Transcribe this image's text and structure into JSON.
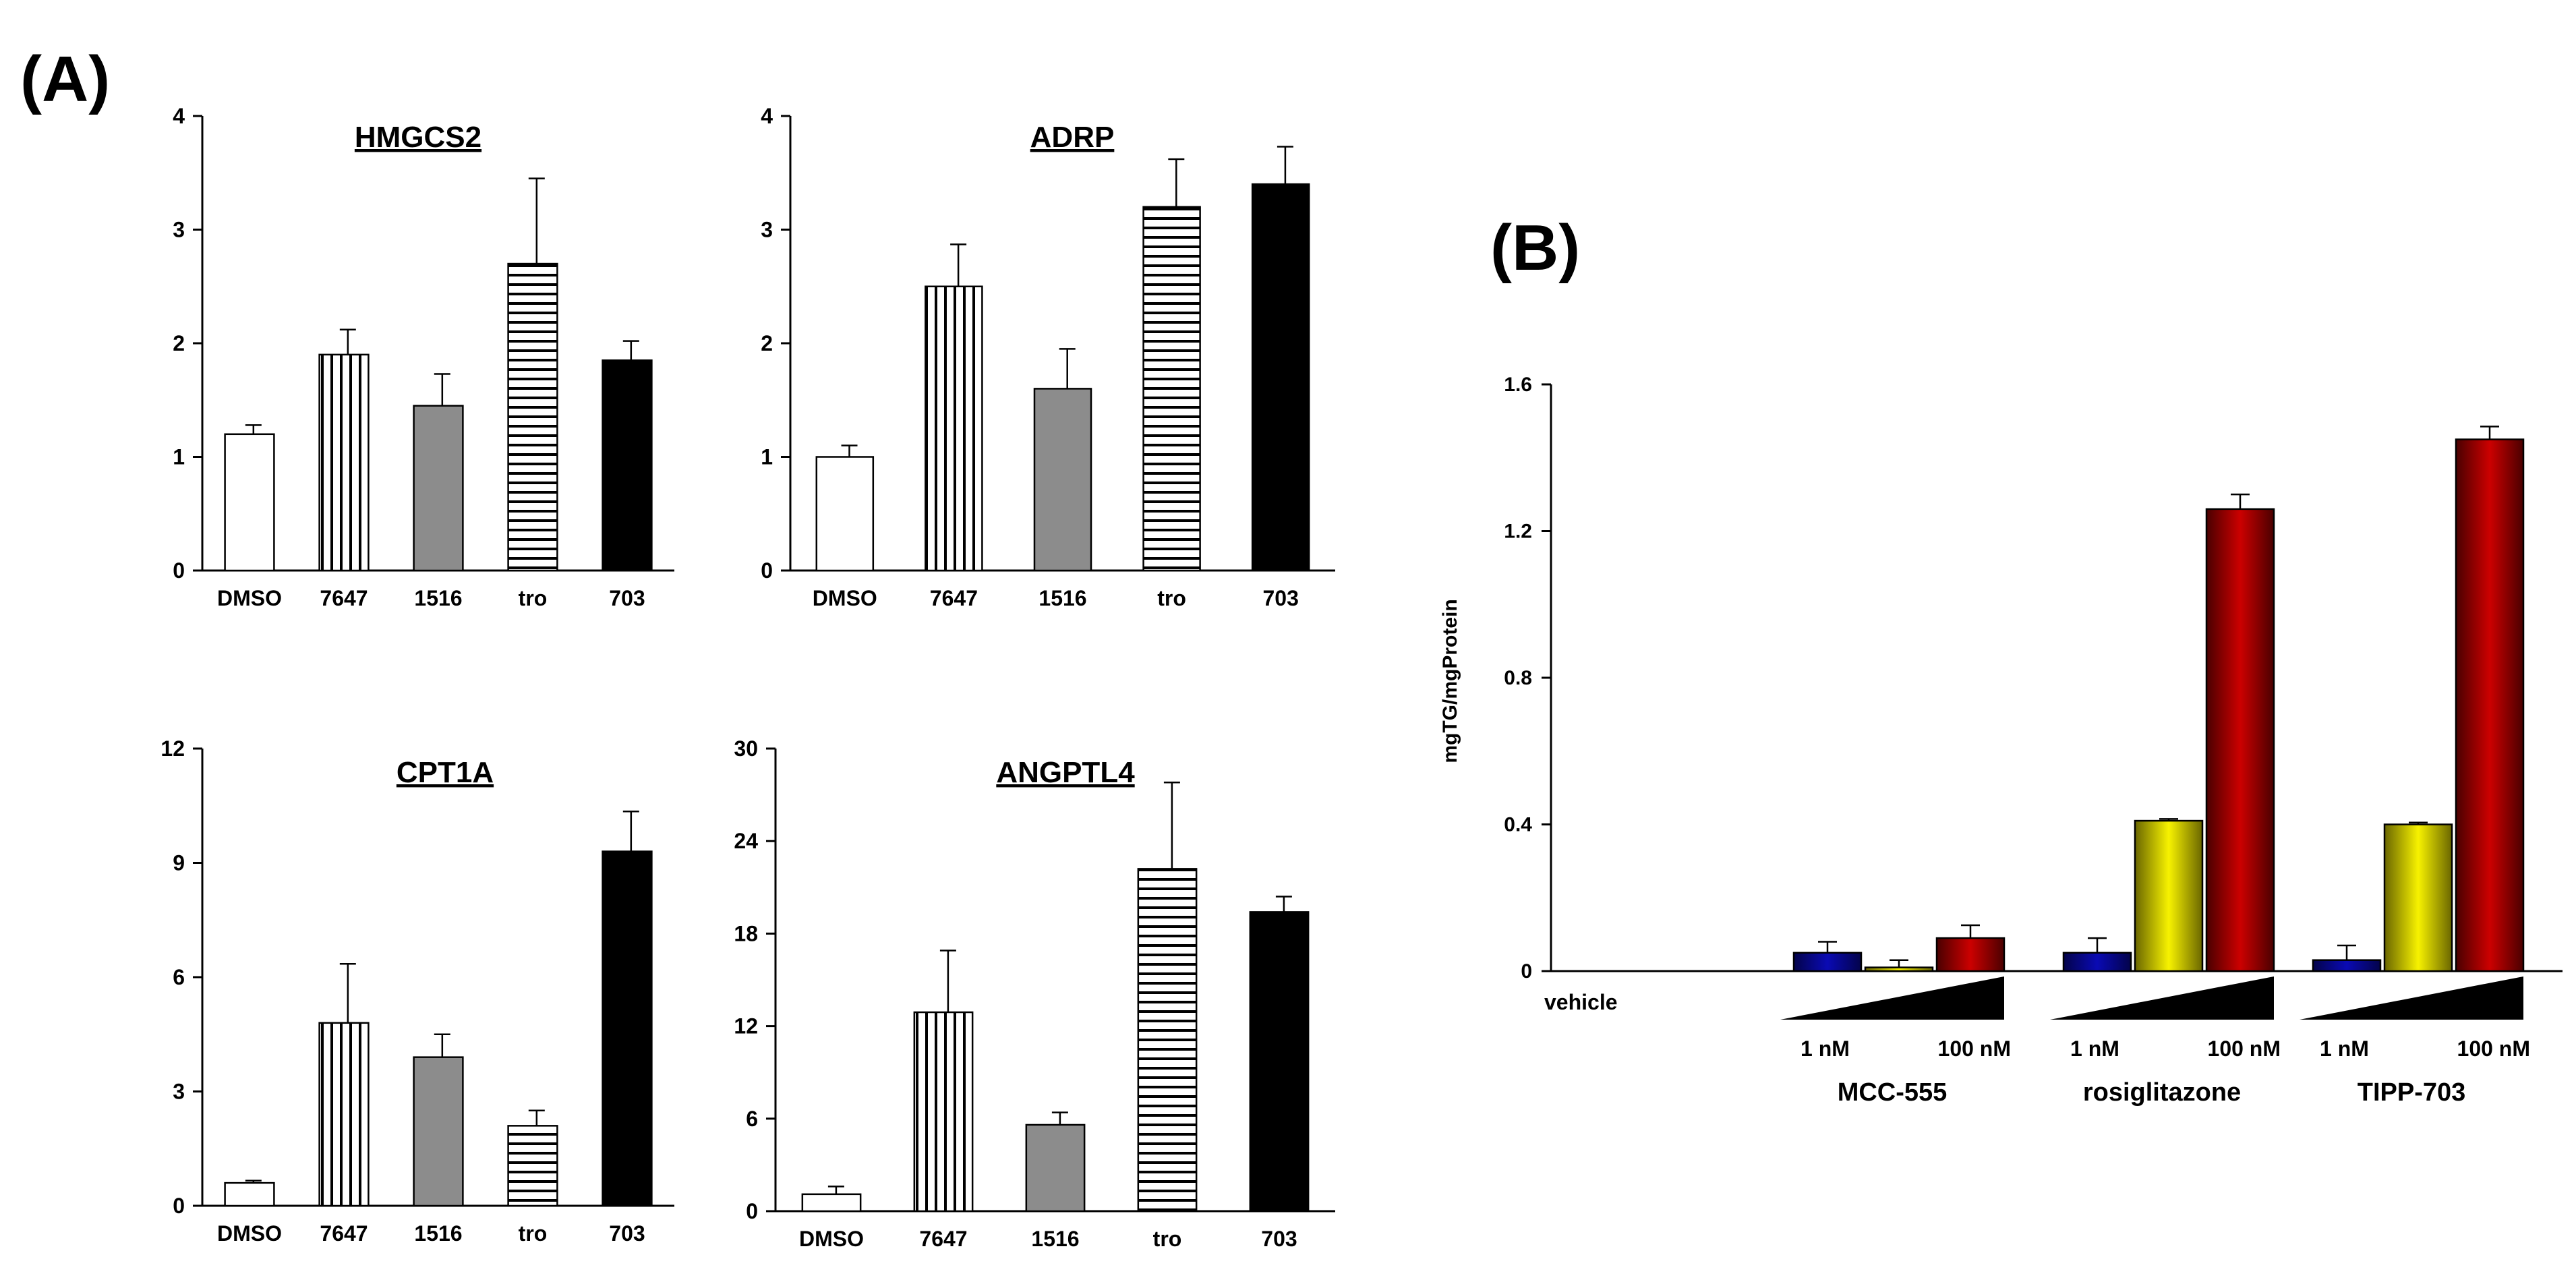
{
  "panel_labels": {
    "a": "(A)",
    "b": "(B)"
  },
  "colors": {
    "blue": "#0a0ab4",
    "yellow": "#f7f200",
    "red": "#cc0000",
    "gray": "#8c8c8c",
    "black": "#000000",
    "white": "#ffffff"
  },
  "chart_data": [
    {
      "type": "bar",
      "title": "HMGCS2",
      "categories": [
        "DMSO",
        "7647",
        "1516",
        "tro",
        "703"
      ],
      "values": [
        1.2,
        1.9,
        1.45,
        2.7,
        1.85
      ],
      "errors": [
        0.08,
        0.22,
        0.28,
        0.75,
        0.17
      ],
      "fills": [
        "white",
        "vertical-stripes",
        "gray",
        "horizontal-stripes",
        "black"
      ],
      "ylim": [
        0,
        4
      ],
      "yticks": [
        "0",
        "1",
        "2",
        "3",
        "4"
      ]
    },
    {
      "type": "bar",
      "title": "ADRP",
      "categories": [
        "DMSO",
        "7647",
        "1516",
        "tro",
        "703"
      ],
      "values": [
        1.0,
        2.5,
        1.6,
        3.2,
        3.4
      ],
      "errors": [
        0.1,
        0.37,
        0.35,
        0.42,
        0.33
      ],
      "fills": [
        "white",
        "vertical-stripes",
        "gray",
        "horizontal-stripes",
        "black"
      ],
      "ylim": [
        0,
        4
      ],
      "yticks": [
        "0",
        "1",
        "2",
        "3",
        "4"
      ]
    },
    {
      "type": "bar",
      "title": "CPT1A",
      "categories": [
        "DMSO",
        "7647",
        "1516",
        "tro",
        "703"
      ],
      "values": [
        0.6,
        4.8,
        3.9,
        2.1,
        9.3
      ],
      "errors": [
        0.06,
        1.55,
        0.6,
        0.4,
        1.05
      ],
      "fills": [
        "white",
        "vertical-stripes",
        "gray",
        "horizontal-stripes",
        "black"
      ],
      "ylim": [
        0,
        12
      ],
      "yticks": [
        "0",
        "3",
        "6",
        "9",
        "12"
      ]
    },
    {
      "type": "bar",
      "title": "ANGPTL4",
      "categories": [
        "DMSO",
        "7647",
        "1516",
        "tro",
        "703"
      ],
      "values": [
        1.1,
        12.9,
        5.6,
        22.2,
        19.4
      ],
      "errors": [
        0.5,
        4.0,
        0.8,
        5.6,
        1.0
      ],
      "fills": [
        "white",
        "vertical-stripes",
        "gray",
        "horizontal-stripes",
        "black"
      ],
      "ylim": [
        0,
        30
      ],
      "yticks": [
        "0",
        "6",
        "12",
        "18",
        "24",
        "30"
      ]
    },
    {
      "type": "bar",
      "ylabel": "mgTG/mgProtein",
      "ylim": [
        0,
        1.6
      ],
      "yticks": [
        "0",
        "0.4",
        "0.8",
        "1.2",
        "1.6"
      ],
      "vehicle_label": "vehicle",
      "groups": [
        {
          "name": "MCC-555",
          "dose_low": "1 nM",
          "dose_high": "100 nM",
          "values": [
            0.05,
            0.01,
            0.09
          ],
          "errors": [
            0.03,
            0.02,
            0.035
          ]
        },
        {
          "name": "rosiglitazone",
          "dose_low": "1 nM",
          "dose_high": "100 nM",
          "values": [
            0.05,
            0.41,
            1.26
          ],
          "errors": [
            0.04,
            0.005,
            0.04
          ]
        },
        {
          "name": "TIPP-703",
          "dose_low": "1 nM",
          "dose_high": "100 nM",
          "values": [
            0.03,
            0.4,
            1.45
          ],
          "errors": [
            0.04,
            0.005,
            0.035
          ]
        }
      ],
      "bar_colors": [
        "blue",
        "yellow",
        "red"
      ]
    }
  ]
}
